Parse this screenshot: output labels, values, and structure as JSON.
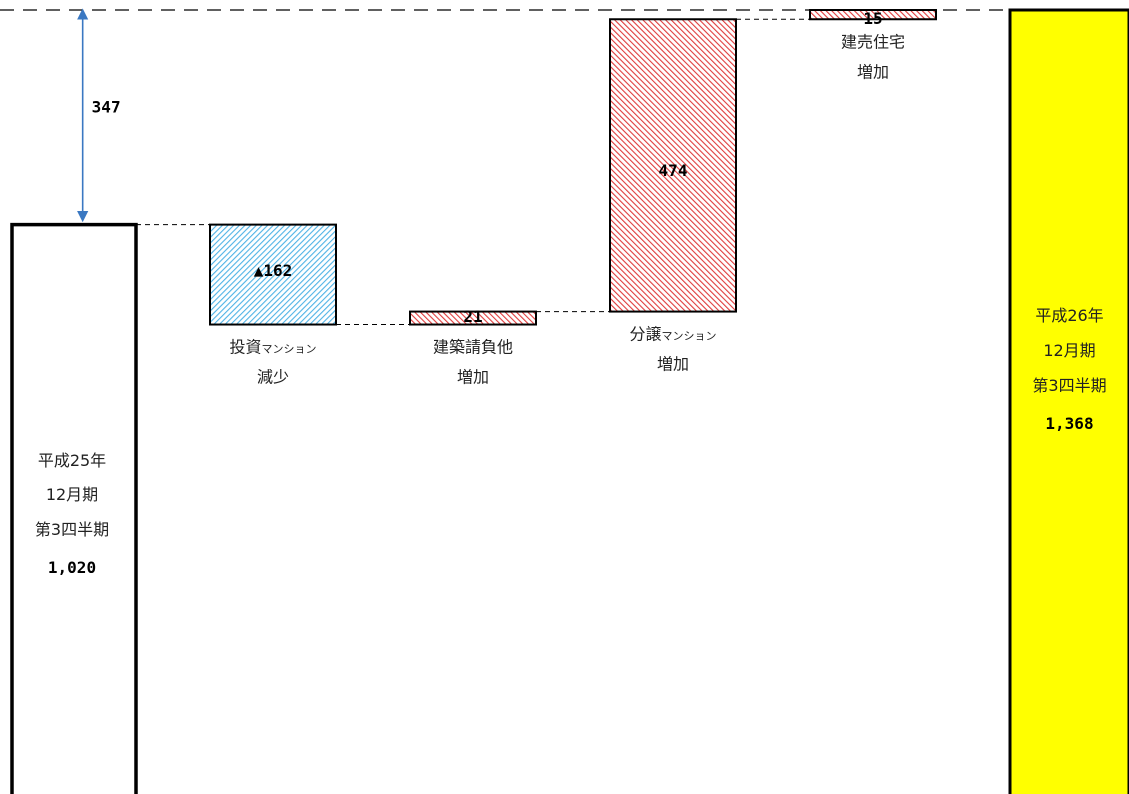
{
  "chart_data": {
    "type": "bar",
    "subtype": "waterfall",
    "categories": [
      {
        "label_lines": [
          "平成25年",
          "12月期",
          "第3四半期"
        ],
        "value_label": "1,020"
      },
      {
        "label_main": "投資",
        "label_small": "マンション",
        "label_line2": "減少",
        "value_label": "▲162"
      },
      {
        "label_main": "建築請負他",
        "label_line2": "増加",
        "value_label": "21"
      },
      {
        "label_main": "分譲",
        "label_small": "マンション",
        "label_line2": "増加",
        "value_label": "474"
      },
      {
        "label_main": "建売住宅",
        "label_line2": "増加",
        "value_label": "15"
      },
      {
        "label_lines": [
          "平成26年",
          "12月期",
          "第3四半期"
        ],
        "value_label": "1,368"
      }
    ],
    "values": [
      1020,
      -162,
      21,
      474,
      15,
      1368
    ],
    "kinds": [
      "total",
      "decrease",
      "increase",
      "increase",
      "increase",
      "total"
    ],
    "difference_label": "347",
    "colors": {
      "start_fill": "#ffffff",
      "end_fill": "#ffff00",
      "decrease_hatch": "#4fb3e6",
      "increase_hatch": "#e03c3c",
      "border": "#000000",
      "arrow": "#3a78c2"
    }
  }
}
